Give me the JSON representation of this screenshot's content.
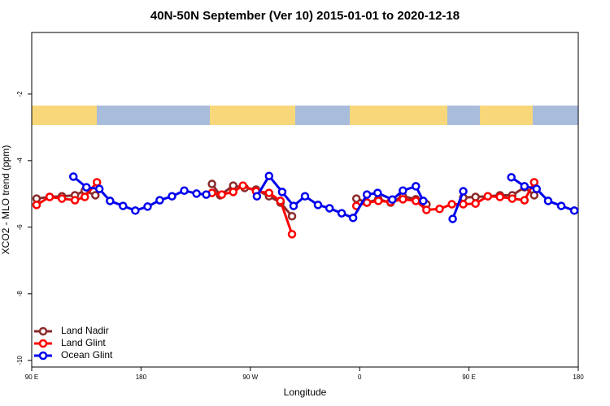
{
  "chart_data": {
    "type": "line",
    "title": "40N-50N September (Ver 10)   2015-01-01 to 2020-12-18",
    "x_label": "Longitude",
    "y_label": "XCO2 - MLO trend (ppm)",
    "xlim": [
      90,
      540
    ],
    "xticks": [
      {
        "value": 90,
        "label": "90 E"
      },
      {
        "value": 180,
        "label": "180"
      },
      {
        "value": 270,
        "label": "90 W"
      },
      {
        "value": 360,
        "label": "0"
      },
      {
        "value": 450,
        "label": "90 E"
      },
      {
        "value": 540,
        "label": "180"
      }
    ],
    "ylim": [
      -10.2,
      -0.15
    ],
    "yticks": [
      -10,
      -8,
      -6,
      -4,
      -2
    ],
    "legend": "bottom-left",
    "series": [
      {
        "name": "Land Nadir",
        "color": "#8b2a2a",
        "x": [
          94,
          104.8,
          114.9,
          125.6,
          133.7,
          142.4,
          null,
          238.4,
          245.1,
          255.9,
          265.3,
          274.7,
          285.4,
          294.8,
          304.3,
          null,
          357.3,
          366,
          375.4,
          385.5,
          395.6,
          406.3,
          415,
          null,
          445.3,
          455.4,
          465.5,
          475.5,
          485.6,
          495.7,
          503.7
        ],
        "values": [
          -5.14,
          -5.09,
          -5.07,
          -5.04,
          -4.9,
          -5.04,
          null,
          -4.7,
          -5.04,
          -4.75,
          -4.82,
          -4.87,
          -5.07,
          -5.26,
          -5.67,
          null,
          -5.14,
          -5.26,
          -5.16,
          -5.26,
          -5.07,
          -5.16,
          -5.31,
          null,
          -5.11,
          -5.09,
          -5.07,
          -5.04,
          -5.04,
          -4.8,
          -5.04
        ]
      },
      {
        "name": "Land Glint",
        "color": "#ff0000",
        "x": [
          94,
          104.8,
          114.9,
          125.6,
          133.7,
          143.7,
          null,
          238.4,
          246.5,
          255.9,
          263.9,
          274.7,
          285.4,
          294.8,
          304.3,
          null,
          357.3,
          366,
          375.4,
          385.5,
          395.6,
          406.3,
          415,
          425.8,
          435.9,
          445.3,
          455.4,
          465.5,
          475.5,
          485.6,
          495.7,
          503.7
        ],
        "values": [
          -5.33,
          -5.09,
          -5.14,
          -5.19,
          -5.09,
          -4.65,
          null,
          -4.97,
          -5.02,
          -4.94,
          -4.75,
          -4.92,
          -4.97,
          -5.21,
          -6.21,
          null,
          -5.36,
          -5.26,
          -5.21,
          -5.24,
          -5.16,
          -5.21,
          -5.48,
          -5.45,
          -5.31,
          -5.31,
          -5.29,
          -5.07,
          -5.09,
          -5.14,
          -5.19,
          -4.65
        ]
      },
      {
        "name": "Ocean Glint",
        "color": "#0000ee",
        "x": [
          124.3,
          135,
          145.7,
          154.5,
          165.2,
          175.3,
          185.4,
          195.4,
          205.5,
          215.6,
          225.7,
          233.7,
          null,
          275.4,
          285.4,
          296.2,
          305.6,
          315,
          325.7,
          335.2,
          345.2,
          354.6,
          366,
          374.8,
          386.9,
          395.6,
          406.3,
          412.4,
          null,
          436.6,
          445.3,
          null,
          484.9,
          495.7,
          505.7,
          515.2,
          526,
          536.7
        ],
        "values": [
          -4.48,
          -4.8,
          -4.85,
          -5.21,
          -5.36,
          -5.5,
          -5.38,
          -5.19,
          -5.07,
          -4.9,
          -4.99,
          -5.02,
          null,
          -5.07,
          -4.46,
          -4.94,
          -5.36,
          -5.07,
          -5.33,
          -5.43,
          -5.58,
          -5.72,
          -5.02,
          -4.97,
          -5.17,
          -4.9,
          -4.77,
          -5.21,
          null,
          -5.75,
          -4.92,
          null,
          -4.5,
          -4.77,
          -4.85,
          -5.21,
          -5.36,
          -5.5
        ]
      }
    ]
  }
}
